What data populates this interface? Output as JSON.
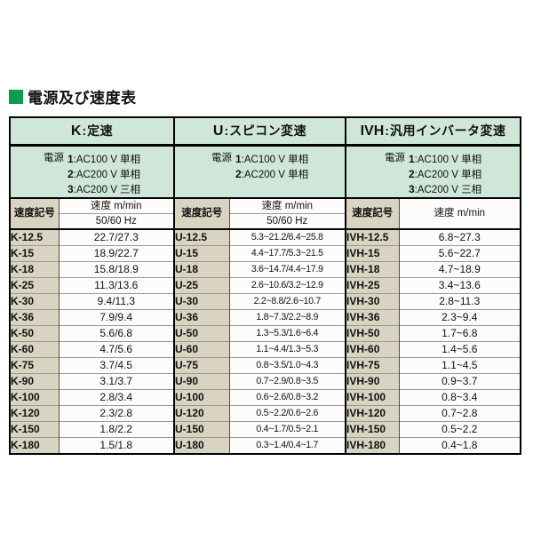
{
  "title": "電源及び速度表",
  "separator": ":",
  "colors": {
    "title_square_green": "#0d9b4d",
    "section_header_bg": "#cfe7d8",
    "code_column_bg": "#d9d3c1",
    "value_cell_bg": "#fdfcfa",
    "grid_line": "#999999",
    "border": "#000000"
  },
  "table": {
    "sections": [
      {
        "code": "K",
        "name": "定速",
        "power_label": "電源",
        "power_options": [
          {
            "num": "1",
            "desc": "AC100 V 単相"
          },
          {
            "num": "2",
            "desc": "AC200 V 単相"
          },
          {
            "num": "3",
            "desc": "AC200 V 三相"
          }
        ],
        "col_headers": {
          "code": "速度記号",
          "speed": "速度 m/min",
          "freq": "50/60 Hz"
        },
        "rows": [
          {
            "code": "K-12.5",
            "speed": "22.7/27.3"
          },
          {
            "code": "K-15",
            "speed": "18.9/22.7"
          },
          {
            "code": "K-18",
            "speed": "15.8/18.9"
          },
          {
            "code": "K-25",
            "speed": "11.3/13.6"
          },
          {
            "code": "K-30",
            "speed": "9.4/11.3"
          },
          {
            "code": "K-36",
            "speed": "7.9/9.4"
          },
          {
            "code": "K-50",
            "speed": "5.6/6.8"
          },
          {
            "code": "K-60",
            "speed": "4.7/5.6"
          },
          {
            "code": "K-75",
            "speed": "3.7/4.5"
          },
          {
            "code": "K-90",
            "speed": "3.1/3.7"
          },
          {
            "code": "K-100",
            "speed": "2.8/3.4"
          },
          {
            "code": "K-120",
            "speed": "2.3/2.8"
          },
          {
            "code": "K-150",
            "speed": "1.8/2.2"
          },
          {
            "code": "K-180",
            "speed": "1.5/1.8"
          }
        ]
      },
      {
        "code": "U",
        "name": "スピコン変速",
        "power_label": "電源",
        "power_options": [
          {
            "num": "1",
            "desc": "AC100 V 単相"
          },
          {
            "num": "2",
            "desc": "AC200 V 単相"
          }
        ],
        "col_headers": {
          "code": "速度記号",
          "speed": "速度 m/min",
          "freq": "50/60 Hz"
        },
        "rows": [
          {
            "code": "U-12.5",
            "speed": "5.3~21.2/6.4~25.8"
          },
          {
            "code": "U-15",
            "speed": "4.4~17.7/5.3~21.5"
          },
          {
            "code": "U-18",
            "speed": "3.6~14.7/4.4~17.9"
          },
          {
            "code": "U-25",
            "speed": "2.6~10.6/3.2~12.9"
          },
          {
            "code": "U-30",
            "speed": "2.2~8.8/2.6~10.7"
          },
          {
            "code": "U-36",
            "speed": "1.8~7.3/2.2~8.9"
          },
          {
            "code": "U-50",
            "speed": "1.3~5.3/1.6~6.4"
          },
          {
            "code": "U-60",
            "speed": "1.1~4.4/1.3~5.3"
          },
          {
            "code": "U-75",
            "speed": "0.8~3.5/1.0~4.3"
          },
          {
            "code": "U-90",
            "speed": "0.7~2.9/0.8~3.5"
          },
          {
            "code": "U-100",
            "speed": "0.6~2.6/0.8~3.2"
          },
          {
            "code": "U-120",
            "speed": "0.5~2.2/0.6~2.6"
          },
          {
            "code": "U-150",
            "speed": "0.4~1.7/0.5~2.1"
          },
          {
            "code": "U-180",
            "speed": "0.3~1.4/0.4~1.7"
          }
        ]
      },
      {
        "code": "IVH",
        "name": "汎用インバータ変速",
        "power_label": "電源",
        "power_options": [
          {
            "num": "1",
            "desc": "AC100 V 単相"
          },
          {
            "num": "2",
            "desc": "AC200 V 単相"
          },
          {
            "num": "3",
            "desc": "AC200 V 三相"
          }
        ],
        "col_headers": {
          "code": "速度記号",
          "speed": "速度 m/min"
        },
        "rows": [
          {
            "code": "IVH-12.5",
            "speed": "6.8~27.3"
          },
          {
            "code": "IVH-15",
            "speed": "5.6~22.7"
          },
          {
            "code": "IVH-18",
            "speed": "4.7~18.9"
          },
          {
            "code": "IVH-25",
            "speed": "3.4~13.6"
          },
          {
            "code": "IVH-30",
            "speed": "2.8~11.3"
          },
          {
            "code": "IVH-36",
            "speed": "2.3~9.4"
          },
          {
            "code": "IVH-50",
            "speed": "1.7~6.8"
          },
          {
            "code": "IVH-60",
            "speed": "1.4~5.6"
          },
          {
            "code": "IVH-75",
            "speed": "1.1~4.5"
          },
          {
            "code": "IVH-90",
            "speed": "0.9~3.7"
          },
          {
            "code": "IVH-100",
            "speed": "0.8~3.4"
          },
          {
            "code": "IVH-120",
            "speed": "0.7~2.8"
          },
          {
            "code": "IVH-150",
            "speed": "0.5~2.2"
          },
          {
            "code": "IVH-180",
            "speed": "0.4~1.8"
          }
        ]
      }
    ]
  }
}
